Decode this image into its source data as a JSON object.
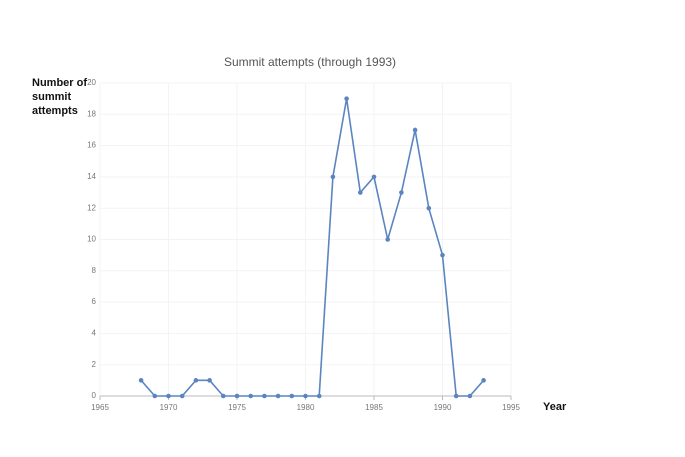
{
  "chart_data": {
    "type": "line",
    "title": "Summit attempts (through 1993)",
    "y_label": "Number of summit attempts",
    "x_label": "Year",
    "x": [
      1968,
      1969,
      1970,
      1971,
      1972,
      1973,
      1974,
      1975,
      1976,
      1977,
      1978,
      1979,
      1980,
      1981,
      1982,
      1983,
      1984,
      1985,
      1986,
      1987,
      1988,
      1989,
      1990,
      1991,
      1992,
      1993
    ],
    "values": [
      1,
      0,
      0,
      0,
      1,
      1,
      0,
      0,
      0,
      0,
      0,
      0,
      0,
      0,
      14,
      19,
      13,
      14,
      10,
      13,
      17,
      12,
      9,
      0,
      0,
      1
    ],
    "color": "#5b85c0",
    "xlim": [
      1965,
      1995
    ],
    "xticks": [
      1965,
      1970,
      1975,
      1980,
      1985,
      1990,
      1995
    ],
    "ylim": [
      0,
      20
    ],
    "yticks": [
      0,
      2,
      4,
      6,
      8,
      10,
      12,
      14,
      16,
      18,
      20
    ],
    "grid": true
  }
}
